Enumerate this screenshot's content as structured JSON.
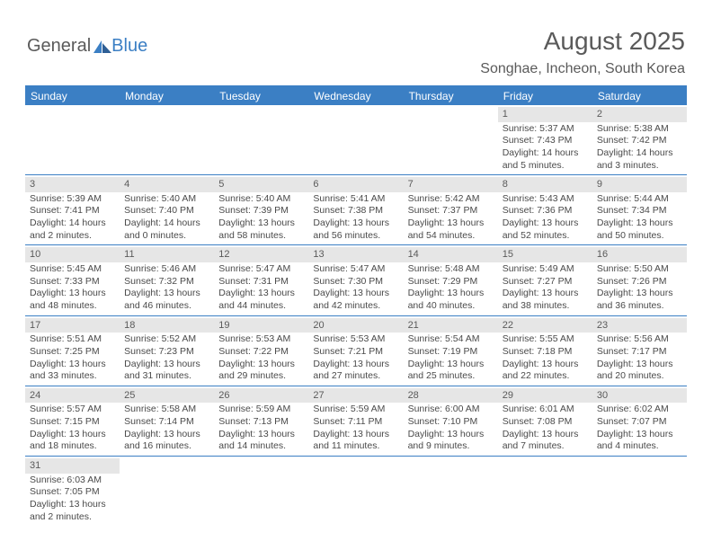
{
  "logo": {
    "text1": "General",
    "text2": "Blue"
  },
  "title": "August 2025",
  "location": "Songhae, Incheon, South Korea",
  "colors": {
    "header_bar": "#3b7fc4",
    "daynum_bg": "#e6e6e6",
    "text": "#4a4a4a"
  },
  "weekdays": [
    "Sunday",
    "Monday",
    "Tuesday",
    "Wednesday",
    "Thursday",
    "Friday",
    "Saturday"
  ],
  "weeks": [
    [
      null,
      null,
      null,
      null,
      null,
      {
        "n": "1",
        "sr": "5:37 AM",
        "ss": "7:43 PM",
        "dh": "14",
        "dm": "5"
      },
      {
        "n": "2",
        "sr": "5:38 AM",
        "ss": "7:42 PM",
        "dh": "14",
        "dm": "3"
      }
    ],
    [
      {
        "n": "3",
        "sr": "5:39 AM",
        "ss": "7:41 PM",
        "dh": "14",
        "dm": "2"
      },
      {
        "n": "4",
        "sr": "5:40 AM",
        "ss": "7:40 PM",
        "dh": "14",
        "dm": "0"
      },
      {
        "n": "5",
        "sr": "5:40 AM",
        "ss": "7:39 PM",
        "dh": "13",
        "dm": "58"
      },
      {
        "n": "6",
        "sr": "5:41 AM",
        "ss": "7:38 PM",
        "dh": "13",
        "dm": "56"
      },
      {
        "n": "7",
        "sr": "5:42 AM",
        "ss": "7:37 PM",
        "dh": "13",
        "dm": "54"
      },
      {
        "n": "8",
        "sr": "5:43 AM",
        "ss": "7:36 PM",
        "dh": "13",
        "dm": "52"
      },
      {
        "n": "9",
        "sr": "5:44 AM",
        "ss": "7:34 PM",
        "dh": "13",
        "dm": "50"
      }
    ],
    [
      {
        "n": "10",
        "sr": "5:45 AM",
        "ss": "7:33 PM",
        "dh": "13",
        "dm": "48"
      },
      {
        "n": "11",
        "sr": "5:46 AM",
        "ss": "7:32 PM",
        "dh": "13",
        "dm": "46"
      },
      {
        "n": "12",
        "sr": "5:47 AM",
        "ss": "7:31 PM",
        "dh": "13",
        "dm": "44"
      },
      {
        "n": "13",
        "sr": "5:47 AM",
        "ss": "7:30 PM",
        "dh": "13",
        "dm": "42"
      },
      {
        "n": "14",
        "sr": "5:48 AM",
        "ss": "7:29 PM",
        "dh": "13",
        "dm": "40"
      },
      {
        "n": "15",
        "sr": "5:49 AM",
        "ss": "7:27 PM",
        "dh": "13",
        "dm": "38"
      },
      {
        "n": "16",
        "sr": "5:50 AM",
        "ss": "7:26 PM",
        "dh": "13",
        "dm": "36"
      }
    ],
    [
      {
        "n": "17",
        "sr": "5:51 AM",
        "ss": "7:25 PM",
        "dh": "13",
        "dm": "33"
      },
      {
        "n": "18",
        "sr": "5:52 AM",
        "ss": "7:23 PM",
        "dh": "13",
        "dm": "31"
      },
      {
        "n": "19",
        "sr": "5:53 AM",
        "ss": "7:22 PM",
        "dh": "13",
        "dm": "29"
      },
      {
        "n": "20",
        "sr": "5:53 AM",
        "ss": "7:21 PM",
        "dh": "13",
        "dm": "27"
      },
      {
        "n": "21",
        "sr": "5:54 AM",
        "ss": "7:19 PM",
        "dh": "13",
        "dm": "25"
      },
      {
        "n": "22",
        "sr": "5:55 AM",
        "ss": "7:18 PM",
        "dh": "13",
        "dm": "22"
      },
      {
        "n": "23",
        "sr": "5:56 AM",
        "ss": "7:17 PM",
        "dh": "13",
        "dm": "20"
      }
    ],
    [
      {
        "n": "24",
        "sr": "5:57 AM",
        "ss": "7:15 PM",
        "dh": "13",
        "dm": "18"
      },
      {
        "n": "25",
        "sr": "5:58 AM",
        "ss": "7:14 PM",
        "dh": "13",
        "dm": "16"
      },
      {
        "n": "26",
        "sr": "5:59 AM",
        "ss": "7:13 PM",
        "dh": "13",
        "dm": "14"
      },
      {
        "n": "27",
        "sr": "5:59 AM",
        "ss": "7:11 PM",
        "dh": "13",
        "dm": "11"
      },
      {
        "n": "28",
        "sr": "6:00 AM",
        "ss": "7:10 PM",
        "dh": "13",
        "dm": "9"
      },
      {
        "n": "29",
        "sr": "6:01 AM",
        "ss": "7:08 PM",
        "dh": "13",
        "dm": "7"
      },
      {
        "n": "30",
        "sr": "6:02 AM",
        "ss": "7:07 PM",
        "dh": "13",
        "dm": "4"
      }
    ],
    [
      {
        "n": "31",
        "sr": "6:03 AM",
        "ss": "7:05 PM",
        "dh": "13",
        "dm": "2"
      },
      null,
      null,
      null,
      null,
      null,
      null
    ]
  ],
  "labels": {
    "sunrise": "Sunrise:",
    "sunset": "Sunset:",
    "daylight": "Daylight:",
    "hours": "hours",
    "and": "and",
    "minutes": "minutes."
  }
}
